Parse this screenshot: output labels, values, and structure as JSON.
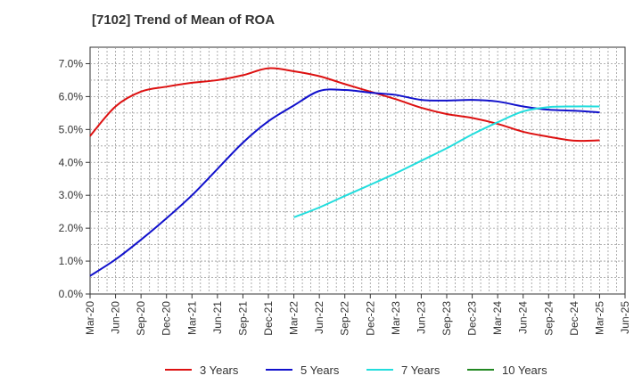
{
  "chart_data": {
    "type": "line",
    "title": "[7102]  Trend of Mean of ROA",
    "xlabel": "",
    "ylabel": "",
    "ylim": [
      0,
      7.5
    ],
    "yticks": [
      0,
      1,
      2,
      3,
      4,
      5,
      6,
      7
    ],
    "ytick_labels": [
      "0.0%",
      "1.0%",
      "2.0%",
      "3.0%",
      "4.0%",
      "5.0%",
      "6.0%",
      "7.0%"
    ],
    "x_months": [
      "Mar-20",
      "Jun-20",
      "Sep-20",
      "Dec-20",
      "Mar-21",
      "Jun-21",
      "Sep-21",
      "Dec-21",
      "Mar-22",
      "Jun-22",
      "Sep-22",
      "Dec-22",
      "Mar-23",
      "Jun-23",
      "Sep-23",
      "Dec-23",
      "Mar-24",
      "Jun-24",
      "Sep-24",
      "Dec-24",
      "Mar-25",
      "Jun-25"
    ],
    "grid": true,
    "legend_position": "bottom",
    "series": [
      {
        "name": "3 Years",
        "color": "#dd1111",
        "x": [
          "Mar-20",
          "Jun-20",
          "Sep-20",
          "Dec-20",
          "Mar-21",
          "Jun-21",
          "Sep-21",
          "Dec-21",
          "Mar-22",
          "Jun-22",
          "Sep-22",
          "Dec-22",
          "Mar-23",
          "Jun-23",
          "Sep-23",
          "Dec-23",
          "Mar-24",
          "Jun-24",
          "Sep-24",
          "Dec-24",
          "Mar-25"
        ],
        "values": [
          4.8,
          5.7,
          6.15,
          6.3,
          6.42,
          6.5,
          6.65,
          6.86,
          6.77,
          6.62,
          6.38,
          6.15,
          5.92,
          5.66,
          5.47,
          5.35,
          5.17,
          4.93,
          4.78,
          4.66,
          4.67
        ]
      },
      {
        "name": "5 Years",
        "color": "#1111cc",
        "x": [
          "Mar-20",
          "Jun-20",
          "Sep-20",
          "Dec-20",
          "Mar-21",
          "Jun-21",
          "Sep-21",
          "Dec-21",
          "Mar-22",
          "Jun-22",
          "Sep-22",
          "Dec-22",
          "Mar-23",
          "Jun-23",
          "Sep-23",
          "Dec-23",
          "Mar-24",
          "Jun-24",
          "Sep-24",
          "Dec-24",
          "Mar-25"
        ],
        "values": [
          0.55,
          1.05,
          1.65,
          2.3,
          3.0,
          3.8,
          4.6,
          5.25,
          5.73,
          6.17,
          6.2,
          6.12,
          6.05,
          5.9,
          5.88,
          5.9,
          5.85,
          5.7,
          5.6,
          5.57,
          5.52
        ]
      },
      {
        "name": "7 Years",
        "color": "#22dddd",
        "x": [
          "Mar-22",
          "Jun-22",
          "Sep-22",
          "Dec-22",
          "Mar-23",
          "Jun-23",
          "Sep-23",
          "Dec-23",
          "Mar-24",
          "Jun-24",
          "Sep-24",
          "Dec-24",
          "Mar-25"
        ],
        "values": [
          2.33,
          2.63,
          2.98,
          3.32,
          3.67,
          4.05,
          4.43,
          4.85,
          5.22,
          5.55,
          5.68,
          5.7,
          5.7
        ]
      },
      {
        "name": "10 Years",
        "color": "#228822",
        "x": [],
        "values": []
      }
    ]
  }
}
